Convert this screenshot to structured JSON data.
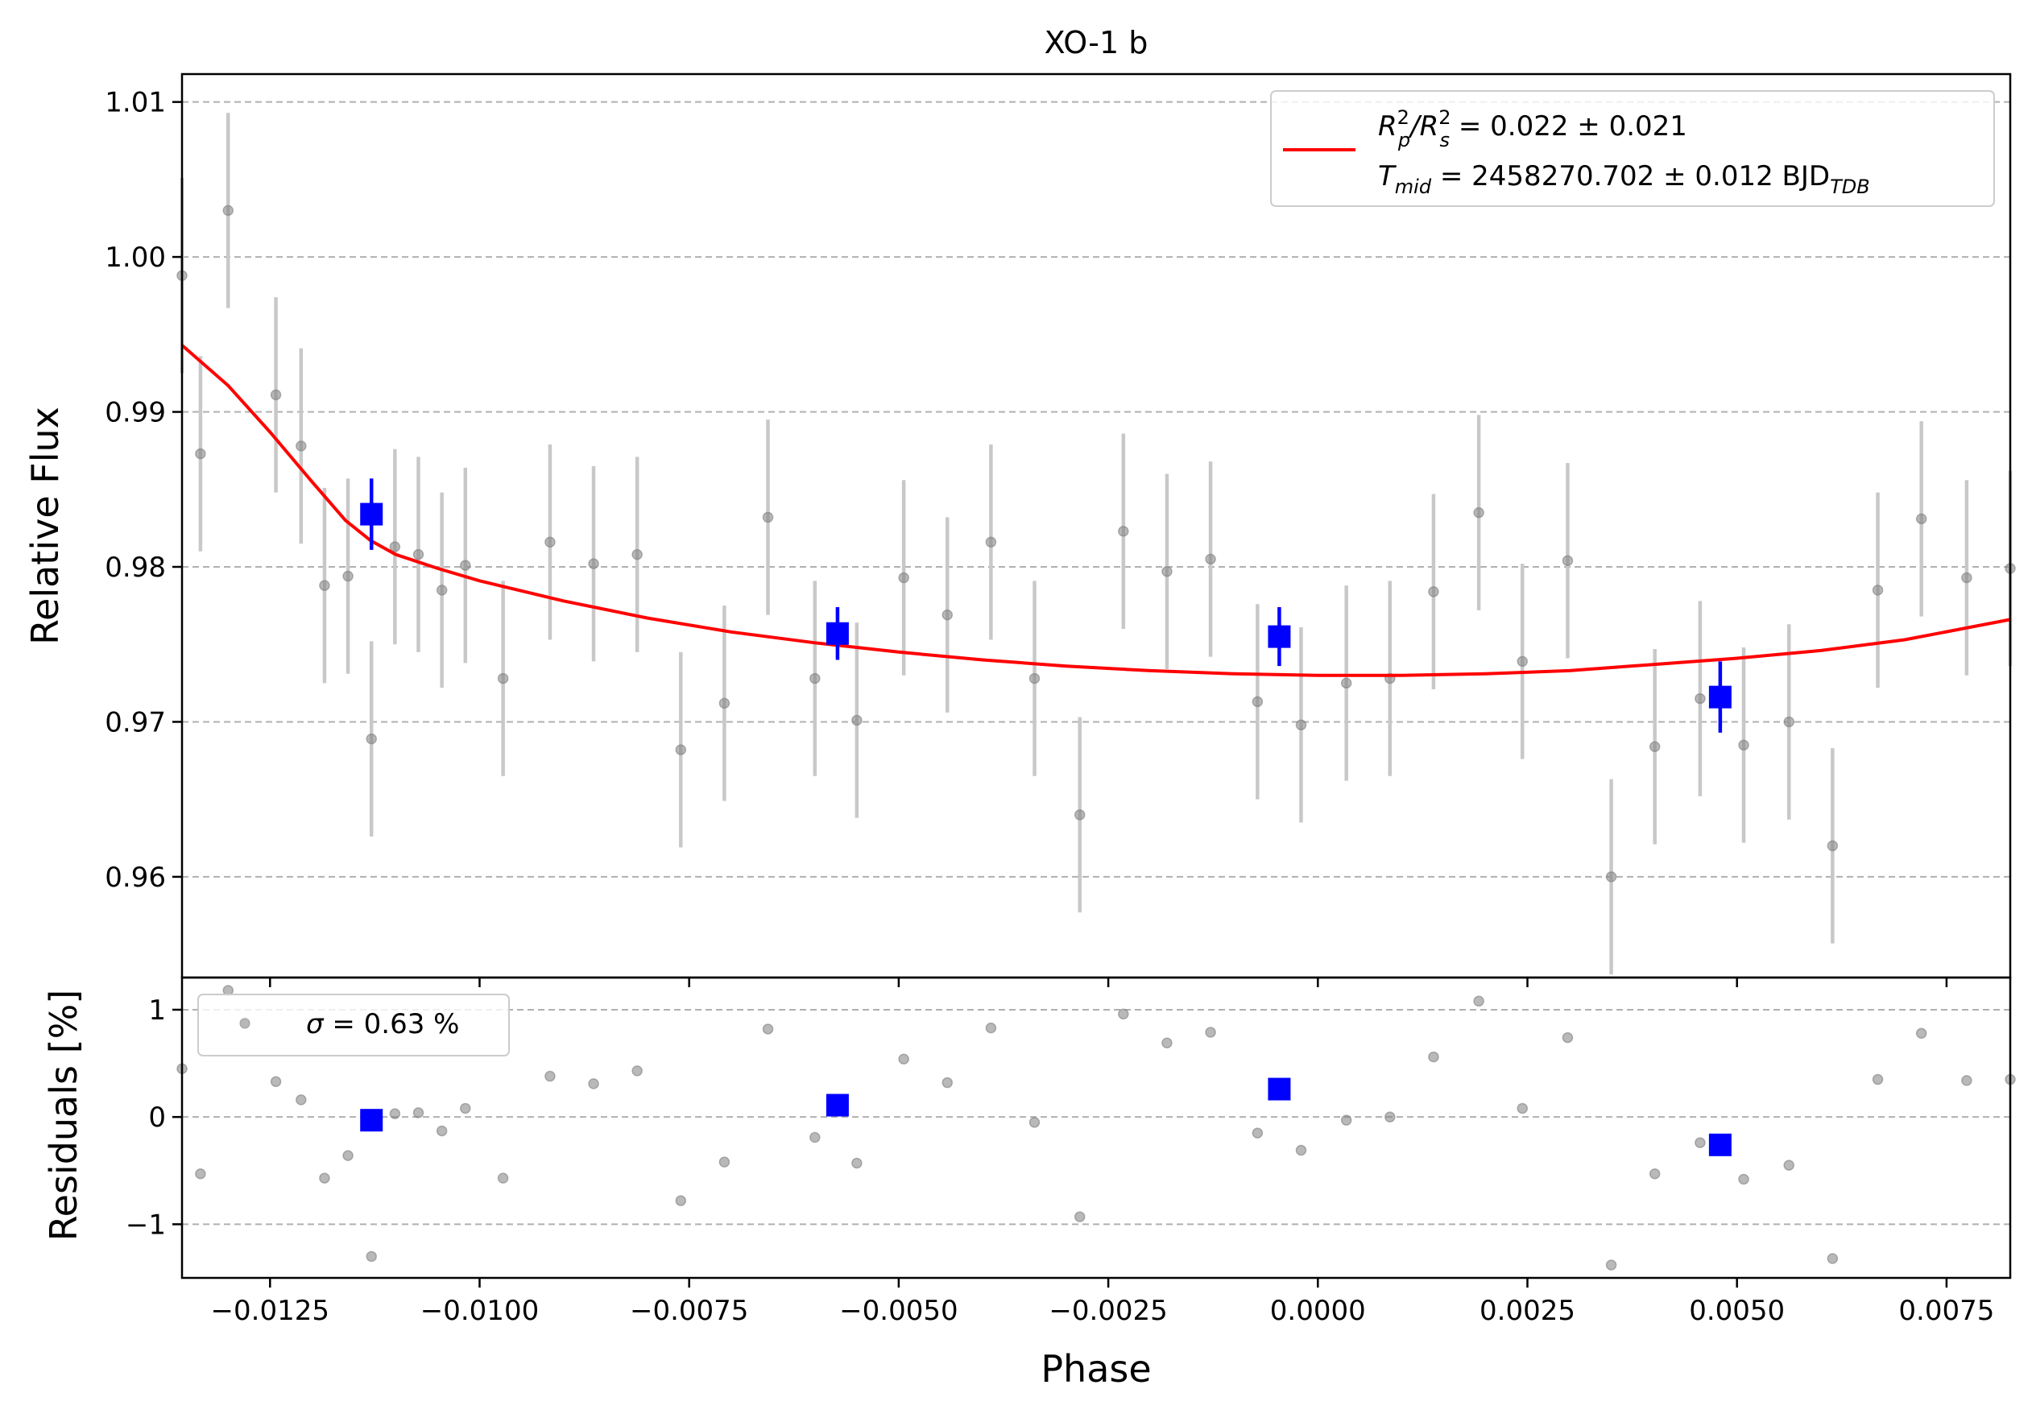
{
  "chart_data": {
    "type": "scatter",
    "title": "XO-1 b",
    "xlabel": "Phase",
    "top_panel": {
      "ylabel": "Relative Flux",
      "ylim": [
        0.9535,
        1.0118
      ],
      "yticks": [
        {
          "value": 1.01,
          "label": "1.01"
        },
        {
          "value": 1.0,
          "label": "1.00"
        },
        {
          "value": 0.99,
          "label": "0.99"
        },
        {
          "value": 0.98,
          "label": "0.98"
        },
        {
          "value": 0.97,
          "label": "0.97"
        },
        {
          "value": 0.96,
          "label": "0.96"
        }
      ],
      "legend": {
        "placement": "top-right",
        "line1": {
          "a": "R",
          "a_sup": "2",
          "a_sub": "p",
          "slash": "/R",
          "b_sup": "2",
          "b_sub": "s",
          "rest": " = 0.022 ± 0.021"
        },
        "line2": {
          "a": "T",
          "a_sub": "mid",
          "rest": " = 2458270.702 ± 0.012 BJD",
          "end_sub": "TDB"
        }
      },
      "raw_points": [
        {
          "x": -0.01355,
          "y": 0.9988,
          "err": 0.0063
        },
        {
          "x": -0.01333,
          "y": 0.9873,
          "err": 0.0063
        },
        {
          "x": -0.013,
          "y": 1.003,
          "err": 0.0063
        },
        {
          "x": -0.01243,
          "y": 0.9911,
          "err": 0.0063
        },
        {
          "x": -0.01213,
          "y": 0.9878,
          "err": 0.0063
        },
        {
          "x": -0.01185,
          "y": 0.9788,
          "err": 0.0063
        },
        {
          "x": -0.01157,
          "y": 0.9794,
          "err": 0.0063
        },
        {
          "x": -0.01129,
          "y": 0.9689,
          "err": 0.0063
        },
        {
          "x": -0.01101,
          "y": 0.9813,
          "err": 0.0063
        },
        {
          "x": -0.01073,
          "y": 0.9808,
          "err": 0.0063
        },
        {
          "x": -0.01045,
          "y": 0.9785,
          "err": 0.0063
        },
        {
          "x": -0.01017,
          "y": 0.9801,
          "err": 0.0063
        },
        {
          "x": -0.00972,
          "y": 0.9728,
          "err": 0.0063
        },
        {
          "x": -0.00916,
          "y": 0.9816,
          "err": 0.0063
        },
        {
          "x": -0.00864,
          "y": 0.9802,
          "err": 0.0063
        },
        {
          "x": -0.00812,
          "y": 0.9808,
          "err": 0.0063
        },
        {
          "x": -0.0076,
          "y": 0.9682,
          "err": 0.0063
        },
        {
          "x": -0.00708,
          "y": 0.9712,
          "err": 0.0063
        },
        {
          "x": -0.00656,
          "y": 0.9832,
          "err": 0.0063
        },
        {
          "x": -0.006,
          "y": 0.9728,
          "err": 0.0063
        },
        {
          "x": -0.0055,
          "y": 0.9701,
          "err": 0.0063
        },
        {
          "x": -0.00494,
          "y": 0.9793,
          "err": 0.0063
        },
        {
          "x": -0.00442,
          "y": 0.9769,
          "err": 0.0063
        },
        {
          "x": -0.0039,
          "y": 0.9816,
          "err": 0.0063
        },
        {
          "x": -0.00338,
          "y": 0.9728,
          "err": 0.0063
        },
        {
          "x": -0.00284,
          "y": 0.964,
          "err": 0.0063
        },
        {
          "x": -0.00232,
          "y": 0.9823,
          "err": 0.0063
        },
        {
          "x": -0.0018,
          "y": 0.9797,
          "err": 0.0063
        },
        {
          "x": -0.00128,
          "y": 0.9805,
          "err": 0.0063
        },
        {
          "x": -0.00072,
          "y": 0.9713,
          "err": 0.0063
        },
        {
          "x": -0.0002,
          "y": 0.9698,
          "err": 0.0063
        },
        {
          "x": 0.00034,
          "y": 0.9725,
          "err": 0.0063
        },
        {
          "x": 0.00086,
          "y": 0.9728,
          "err": 0.0063
        },
        {
          "x": 0.00138,
          "y": 0.9784,
          "err": 0.0063
        },
        {
          "x": 0.00192,
          "y": 0.9835,
          "err": 0.0063
        },
        {
          "x": 0.00244,
          "y": 0.9739,
          "err": 0.0063
        },
        {
          "x": 0.00298,
          "y": 0.9804,
          "err": 0.0063
        },
        {
          "x": 0.0035,
          "y": 0.96,
          "err": 0.0063
        },
        {
          "x": 0.00402,
          "y": 0.9684,
          "err": 0.0063
        },
        {
          "x": 0.00456,
          "y": 0.9715,
          "err": 0.0063
        },
        {
          "x": 0.00508,
          "y": 0.9685,
          "err": 0.0063
        },
        {
          "x": 0.00562,
          "y": 0.97,
          "err": 0.0063
        },
        {
          "x": 0.00614,
          "y": 0.962,
          "err": 0.0063
        },
        {
          "x": 0.00668,
          "y": 0.9785,
          "err": 0.0063
        },
        {
          "x": 0.0072,
          "y": 0.9831,
          "err": 0.0063
        },
        {
          "x": 0.00774,
          "y": 0.9793,
          "err": 0.0063
        },
        {
          "x": 0.00826,
          "y": 0.9799,
          "err": 0.0063
        }
      ],
      "binned_points": [
        {
          "x": -0.01129,
          "y": 0.9834,
          "err": 0.0023
        },
        {
          "x": -0.00573,
          "y": 0.9757,
          "err": 0.0017
        },
        {
          "x": -0.00046,
          "y": 0.9755,
          "err": 0.0019
        },
        {
          "x": 0.0048,
          "y": 0.9716,
          "err": 0.0023
        }
      ],
      "model": {
        "x": [
          -0.01355,
          -0.013,
          -0.0125,
          -0.012,
          -0.0116,
          -0.0113,
          -0.011,
          -0.0105,
          -0.01,
          -0.009,
          -0.008,
          -0.007,
          -0.006,
          -0.005,
          -0.004,
          -0.003,
          -0.002,
          -0.001,
          0.0,
          0.001,
          0.002,
          0.003,
          0.004,
          0.005,
          0.006,
          0.007,
          0.00826
        ],
        "y": [
          0.9943,
          0.9917,
          0.9887,
          0.9855,
          0.983,
          0.9817,
          0.9808,
          0.9799,
          0.9791,
          0.9778,
          0.9767,
          0.9758,
          0.9751,
          0.9745,
          0.974,
          0.9736,
          0.9733,
          0.9731,
          0.973,
          0.973,
          0.9731,
          0.9733,
          0.9737,
          0.9741,
          0.9746,
          0.9753,
          0.9766
        ]
      }
    },
    "bottom_panel": {
      "ylabel": "Residuals [%]",
      "ylim": [
        -1.5,
        1.3
      ],
      "yticks": [
        {
          "value": 1,
          "label": "1"
        },
        {
          "value": 0,
          "label": "0"
        },
        {
          "value": -1,
          "label": "−1"
        }
      ],
      "legend": {
        "placement": "top-left",
        "sym": "σ",
        "rest": " = 0.63 %"
      },
      "raw_points": [
        {
          "x": -0.01355,
          "y": 0.45
        },
        {
          "x": -0.01333,
          "y": -0.53
        },
        {
          "x": -0.013,
          "y": 1.18
        },
        {
          "x": -0.0128,
          "y": 0.88
        },
        {
          "x": -0.01243,
          "y": 0.33
        },
        {
          "x": -0.01213,
          "y": 0.16
        },
        {
          "x": -0.01185,
          "y": -0.57
        },
        {
          "x": -0.01157,
          "y": -0.36
        },
        {
          "x": -0.01129,
          "y": -1.3
        },
        {
          "x": -0.01101,
          "y": 0.03
        },
        {
          "x": -0.01073,
          "y": 0.04
        },
        {
          "x": -0.01045,
          "y": -0.13
        },
        {
          "x": -0.01017,
          "y": 0.08
        },
        {
          "x": -0.00972,
          "y": -0.57
        },
        {
          "x": -0.00916,
          "y": 0.38
        },
        {
          "x": -0.00864,
          "y": 0.31
        },
        {
          "x": -0.00812,
          "y": 0.43
        },
        {
          "x": -0.0076,
          "y": -0.78
        },
        {
          "x": -0.00708,
          "y": -0.42
        },
        {
          "x": -0.00656,
          "y": 0.82
        },
        {
          "x": -0.006,
          "y": -0.19
        },
        {
          "x": -0.0055,
          "y": -0.43
        },
        {
          "x": -0.00494,
          "y": 0.54
        },
        {
          "x": -0.00442,
          "y": 0.32
        },
        {
          "x": -0.0039,
          "y": 0.83
        },
        {
          "x": -0.00338,
          "y": -0.05
        },
        {
          "x": -0.00284,
          "y": -0.93
        },
        {
          "x": -0.00232,
          "y": 0.96
        },
        {
          "x": -0.0018,
          "y": 0.69
        },
        {
          "x": -0.00128,
          "y": 0.79
        },
        {
          "x": -0.00072,
          "y": -0.15
        },
        {
          "x": -0.0002,
          "y": -0.31
        },
        {
          "x": 0.00034,
          "y": -0.03
        },
        {
          "x": 0.00086,
          "y": 0.0
        },
        {
          "x": 0.00138,
          "y": 0.56
        },
        {
          "x": 0.00192,
          "y": 1.08
        },
        {
          "x": 0.00244,
          "y": 0.08
        },
        {
          "x": 0.00298,
          "y": 0.74
        },
        {
          "x": 0.0035,
          "y": -1.38
        },
        {
          "x": 0.00402,
          "y": -0.53
        },
        {
          "x": 0.00456,
          "y": -0.24
        },
        {
          "x": 0.00508,
          "y": -0.58
        },
        {
          "x": 0.00562,
          "y": -0.45
        },
        {
          "x": 0.00614,
          "y": -1.32
        },
        {
          "x": 0.00668,
          "y": 0.35
        },
        {
          "x": 0.0072,
          "y": 0.78
        },
        {
          "x": 0.00774,
          "y": 0.34
        },
        {
          "x": 0.00826,
          "y": 0.35
        }
      ],
      "binned_points": [
        {
          "x": -0.01129,
          "y": -0.03
        },
        {
          "x": -0.00573,
          "y": 0.11
        },
        {
          "x": -0.00046,
          "y": 0.26
        },
        {
          "x": 0.0048,
          "y": -0.26
        }
      ]
    },
    "xlim": [
      -0.01355,
      0.00826
    ],
    "xticks": [
      {
        "value": -0.0125,
        "label": "−0.0125"
      },
      {
        "value": -0.01,
        "label": "−0.0100"
      },
      {
        "value": -0.0075,
        "label": "−0.0075"
      },
      {
        "value": -0.005,
        "label": "−0.0050"
      },
      {
        "value": -0.0025,
        "label": "−0.0025"
      },
      {
        "value": 0.0,
        "label": "0.0000"
      },
      {
        "value": 0.0025,
        "label": "0.0025"
      },
      {
        "value": 0.005,
        "label": "0.0050"
      },
      {
        "value": 0.0075,
        "label": "0.0075"
      }
    ],
    "grid": "horizontal dashed",
    "colors": {
      "raw": "#808080",
      "raw_err": "#c8c8c8",
      "binned": "#0000ff",
      "model": "#ff0000",
      "grid": "#b0b0b0"
    }
  }
}
